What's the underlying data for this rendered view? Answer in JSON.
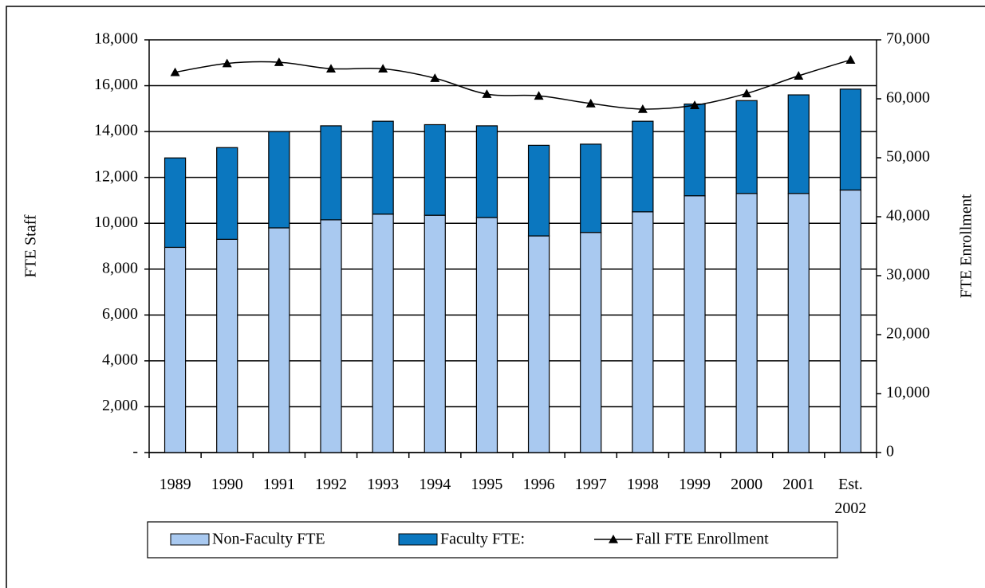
{
  "chart_data": {
    "type": "bar",
    "y_label": "FTE Staff",
    "y2_label": "FTE Enrollment",
    "categories": [
      "1989",
      "1990",
      "1991",
      "1992",
      "1993",
      "1994",
      "1995",
      "1996",
      "1997",
      "1998",
      "1999",
      "2000",
      "2001",
      "Est. 2002"
    ],
    "series": [
      {
        "name": "Non-Faculty FTE",
        "color": "#a9c9f0",
        "values": [
          8950,
          9300,
          9800,
          10150,
          10400,
          10350,
          10250,
          9450,
          9600,
          10500,
          11200,
          11300,
          11300,
          11450
        ]
      },
      {
        "name": "Faculty FTE:",
        "color": "#0b77bf",
        "values": [
          3900,
          4000,
          4200,
          4100,
          4050,
          3950,
          4000,
          3950,
          3850,
          3950,
          4000,
          4050,
          4300,
          4400
        ]
      },
      {
        "name": "Fall FTE Enrollment",
        "color": "#000000",
        "type": "line",
        "axis": "y2",
        "values": [
          64500,
          66000,
          66200,
          65100,
          65100,
          63500,
          60800,
          60500,
          59200,
          58250,
          58900,
          60900,
          63900,
          66600
        ]
      }
    ],
    "ylim": [
      0,
      18000
    ],
    "yticks": [
      {
        "value": 0,
        "label": "-"
      },
      {
        "value": 2000,
        "label": "2,000"
      },
      {
        "value": 4000,
        "label": "4,000"
      },
      {
        "value": 6000,
        "label": "6,000"
      },
      {
        "value": 8000,
        "label": "8,000"
      },
      {
        "value": 10000,
        "label": "10,000"
      },
      {
        "value": 12000,
        "label": "12,000"
      },
      {
        "value": 14000,
        "label": "14,000"
      },
      {
        "value": 16000,
        "label": "16,000"
      },
      {
        "value": 18000,
        "label": "18,000"
      }
    ],
    "y2lim": [
      0,
      70000
    ],
    "y2ticks": [
      0,
      {
        "value": 10000,
        "label": "10,000"
      },
      {
        "value": 20000,
        "label": "20,000"
      },
      {
        "value": 30000,
        "label": "30,000"
      },
      {
        "value": 40000,
        "label": "40,000"
      },
      {
        "value": 50000,
        "label": "50,000"
      },
      {
        "value": 60000,
        "label": "60,000"
      },
      {
        "value": 70000,
        "label": "70,000"
      }
    ],
    "grid": true,
    "legend": "bottom"
  }
}
